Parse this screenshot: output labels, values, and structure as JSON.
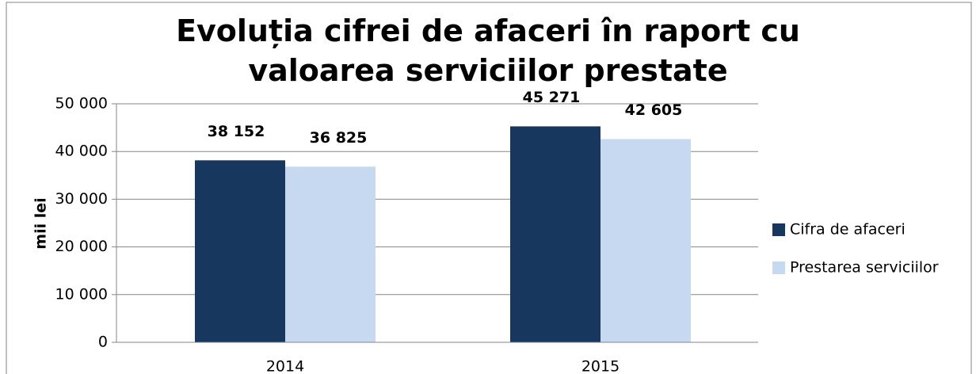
{
  "chart_data": {
    "type": "bar",
    "title": "Evoluția cifrei de afaceri în raport cu valoarea serviciilor prestate",
    "y_label": "mii lei",
    "categories": [
      "2014",
      "2015"
    ],
    "series": [
      {
        "name": "Cifra de afaceri",
        "color": "#17375e",
        "values": [
          38152,
          45271
        ],
        "value_labels": [
          "38 152",
          "45 271"
        ]
      },
      {
        "name": "Prestarea serviciilor",
        "color": "#c6d9f1",
        "values": [
          36825,
          42605
        ],
        "value_labels": [
          "36 825",
          "42 605"
        ]
      }
    ],
    "ylim": [
      0,
      50000
    ],
    "yticks": [
      0,
      {
        "value": 10000,
        "label": "10 000"
      },
      {
        "value": 20000,
        "label": "20 000"
      },
      {
        "value": 30000,
        "label": "30 000"
      },
      {
        "value": 40000,
        "label": "40 000"
      },
      {
        "value": 50000,
        "label": "50 000"
      }
    ],
    "grid": true,
    "legend": "right"
  }
}
